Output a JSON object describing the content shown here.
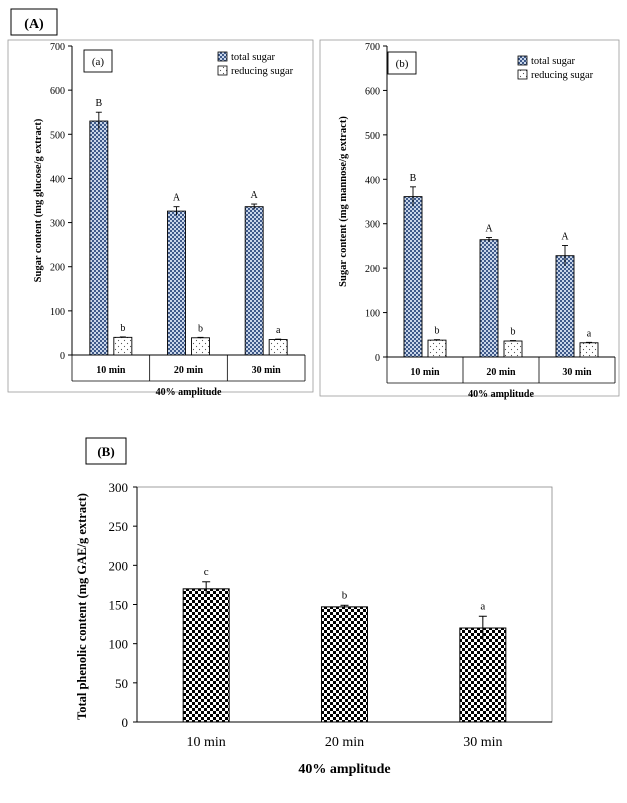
{
  "figure": {
    "panel_a_label": "(A)",
    "panel_b_label": "(B)"
  },
  "chart_data": [
    {
      "type": "bar",
      "panel": "(a)",
      "categories": [
        "10 min",
        "20 min",
        "30 min"
      ],
      "xlabel": "40% amplitude",
      "ylabel": "Sugar content (mg glucose/g extract)",
      "ylim": [
        0,
        700
      ],
      "yticks": [
        "0",
        "100",
        "200",
        "300",
        "400",
        "500",
        "600",
        "700"
      ],
      "legend": [
        "total sugar",
        "reducing sugar"
      ],
      "legend_position": "top-right",
      "series": [
        {
          "name": "total sugar",
          "values": [
            530,
            326,
            336
          ],
          "errors": [
            20,
            10,
            6
          ],
          "letters": [
            "B",
            "A",
            "A"
          ]
        },
        {
          "name": "reducing sugar",
          "values": [
            40,
            39,
            35
          ],
          "errors": [
            1,
            1,
            1
          ],
          "letters": [
            "b",
            "b",
            "a"
          ]
        }
      ]
    },
    {
      "type": "bar",
      "panel": "(b)",
      "categories": [
        "10 min",
        "20 min",
        "30 min"
      ],
      "xlabel": "40% amplitude",
      "ylabel": "Sugar content (mg mannose/g extract)",
      "ylim": [
        0,
        700
      ],
      "yticks": [
        "0",
        "100",
        "200",
        "300",
        "400",
        "500",
        "600",
        "700"
      ],
      "legend": [
        "total sugar",
        "reducing sugar"
      ],
      "legend_position": "top-right",
      "series": [
        {
          "name": "total sugar",
          "values": [
            361,
            264,
            228
          ],
          "errors": [
            22,
            5,
            23
          ],
          "letters": [
            "B",
            "A",
            "A"
          ]
        },
        {
          "name": "reducing sugar",
          "values": [
            38,
            36,
            32
          ],
          "errors": [
            1,
            1,
            1
          ],
          "letters": [
            "b",
            "b",
            "a"
          ]
        }
      ]
    },
    {
      "type": "bar",
      "panel": "(B)",
      "categories": [
        "10 min",
        "20 min",
        "30 min"
      ],
      "xlabel": "40% amplitude",
      "ylabel": "Total phenolic content (mg GAE/g extract)",
      "ylim": [
        0,
        300
      ],
      "yticks": [
        "0",
        "50",
        "100",
        "150",
        "200",
        "250",
        "300"
      ],
      "series": [
        {
          "name": "total phenolic content",
          "values": [
            170,
            147,
            120
          ],
          "errors": [
            9,
            2,
            15
          ],
          "letters": [
            "c",
            "b",
            "a"
          ]
        }
      ]
    }
  ]
}
